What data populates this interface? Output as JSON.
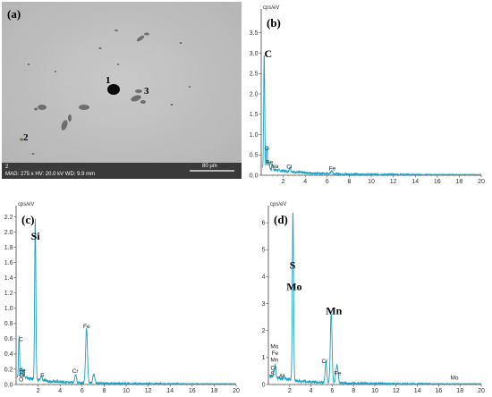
{
  "sem": {
    "label": "(a)",
    "info": "MAG: 275 x  HV: 20.0 kV  WD: 9.9 mm",
    "scale_label": "80 µm",
    "corner_id": "2",
    "markers": [
      "1",
      "2",
      "3"
    ]
  },
  "chart_data": [
    {
      "type": "line",
      "panel_label": "(b)",
      "unit_label": "cps/eV",
      "xlim": [
        0,
        20
      ],
      "ylim": [
        0,
        4.0
      ],
      "xticks": [
        2,
        4,
        6,
        8,
        10,
        12,
        14,
        16,
        18,
        20
      ],
      "yticks": [
        0.0,
        0.5,
        1.0,
        1.5,
        2.0,
        2.5,
        3.0,
        3.5
      ],
      "x_tick_labels": [
        "2",
        "4",
        "6",
        "8",
        "10",
        "12",
        "14",
        "16",
        "18",
        "20"
      ],
      "y_tick_labels": [
        "0.0",
        "0.5",
        "1.0",
        "1.5",
        "2.0",
        "2.5",
        "3.0",
        "3.5"
      ],
      "peaks": [
        [
          0.27,
          2.82
        ],
        [
          0.52,
          0.55
        ],
        [
          0.71,
          0.18
        ],
        [
          1.04,
          0.12
        ],
        [
          2.62,
          0.12
        ],
        [
          6.4,
          0.08
        ]
      ],
      "labels": [
        {
          "text": "C",
          "big": true,
          "x": 0.28,
          "y": 2.9
        },
        {
          "text": "O",
          "big": false,
          "x": 0.3,
          "y": 0.62
        },
        {
          "text": "Fe",
          "big": false,
          "x": 0.45,
          "y": 0.28
        },
        {
          "text": "Na",
          "big": false,
          "x": 0.9,
          "y": 0.18
        },
        {
          "text": "Cl",
          "big": false,
          "x": 2.3,
          "y": 0.16
        },
        {
          "text": "Fe",
          "big": false,
          "x": 6.15,
          "y": 0.12
        }
      ],
      "series_color": "#17a2c5"
    },
    {
      "type": "line",
      "panel_label": "(c)",
      "unit_label": "cps/eV",
      "xlim": [
        0,
        20
      ],
      "ylim": [
        0,
        2.3
      ],
      "xticks": [
        2,
        4,
        6,
        8,
        10,
        12,
        14,
        16,
        18,
        20
      ],
      "yticks": [
        0.0,
        0.2,
        0.4,
        0.6,
        0.8,
        1.0,
        1.2,
        1.4,
        1.6,
        1.8,
        2.0,
        2.2
      ],
      "x_tick_labels": [
        "2",
        "4",
        "6",
        "8",
        "10",
        "12",
        "14",
        "16",
        "18",
        "20"
      ],
      "y_tick_labels": [
        "0.0",
        "0.2",
        "0.4",
        "0.6",
        "0.8",
        "1.0",
        "1.2",
        "1.4",
        "1.6",
        "1.8",
        "2.0",
        "2.2"
      ],
      "peaks": [
        [
          0.27,
          0.55
        ],
        [
          0.52,
          0.12
        ],
        [
          0.71,
          0.1
        ],
        [
          1.74,
          2.1
        ],
        [
          2.31,
          0.06
        ],
        [
          5.41,
          0.1
        ],
        [
          6.4,
          0.72
        ],
        [
          7.06,
          0.12
        ]
      ],
      "labels": [
        {
          "text": "Si",
          "big": true,
          "x": 1.35,
          "y": 1.9
        },
        {
          "text": "C",
          "big": false,
          "x": 0.25,
          "y": 0.57
        },
        {
          "text": "Fe",
          "big": false,
          "x": 0.25,
          "y": 0.16
        },
        {
          "text": "Cr",
          "big": false,
          "x": 0.25,
          "y": 0.1
        },
        {
          "text": "O",
          "big": false,
          "x": 0.25,
          "y": 0.04
        },
        {
          "text": "S",
          "big": false,
          "x": 2.2,
          "y": 0.1
        },
        {
          "text": "Cr",
          "big": false,
          "x": 5.1,
          "y": 0.15
        },
        {
          "text": "Fe",
          "big": false,
          "x": 6.1,
          "y": 0.74
        }
      ],
      "series_color": "#17a2c5"
    },
    {
      "type": "line",
      "panel_label": "(d)",
      "unit_label": "cps/eV",
      "xlim": [
        0,
        20
      ],
      "ylim": [
        0,
        6.5
      ],
      "xticks": [
        2,
        4,
        6,
        8,
        10,
        12,
        14,
        16,
        18,
        20
      ],
      "yticks": [
        0,
        1,
        2,
        3,
        4,
        5,
        6
      ],
      "x_tick_labels": [
        "2",
        "4",
        "6",
        "8",
        "10",
        "12",
        "14",
        "16",
        "18",
        "20"
      ],
      "y_tick_labels": [
        "0",
        "1",
        "2",
        "3",
        "4",
        "5",
        "6"
      ],
      "peaks": [
        [
          0.5,
          0.2
        ],
        [
          0.64,
          0.5
        ],
        [
          1.49,
          0.15
        ],
        [
          2.31,
          6.3
        ],
        [
          5.41,
          0.75
        ],
        [
          5.9,
          2.6
        ],
        [
          6.4,
          0.35
        ],
        [
          6.49,
          0.4
        ]
      ],
      "labels": [
        {
          "text": "S",
          "big": true,
          "x": 2.0,
          "y": 4.3
        },
        {
          "text": "Mo",
          "big": true,
          "x": 1.7,
          "y": 3.5
        },
        {
          "text": "Mn",
          "big": true,
          "x": 5.4,
          "y": 2.6
        },
        {
          "text": "Mo",
          "big": false,
          "x": 0.2,
          "y": 1.35
        },
        {
          "text": "Fe",
          "big": false,
          "x": 0.3,
          "y": 1.1
        },
        {
          "text": "Mn",
          "big": false,
          "x": 0.2,
          "y": 0.85
        },
        {
          "text": "Cr",
          "big": false,
          "x": 0.2,
          "y": 0.55
        },
        {
          "text": "S",
          "big": false,
          "x": 0.2,
          "y": 0.33
        },
        {
          "text": "Al",
          "big": false,
          "x": 1.0,
          "y": 0.25
        },
        {
          "text": "Cr",
          "big": false,
          "x": 5.0,
          "y": 0.8
        },
        {
          "text": "Fe",
          "big": false,
          "x": 6.2,
          "y": 0.35
        },
        {
          "text": "Mo",
          "big": false,
          "x": 17.1,
          "y": 0.18
        }
      ],
      "series_color": "#17a2c5"
    }
  ]
}
